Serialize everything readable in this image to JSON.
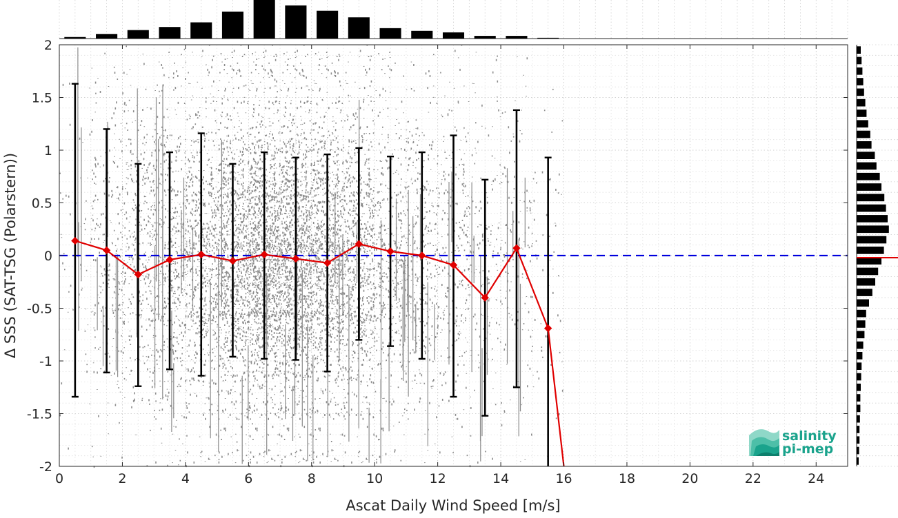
{
  "chart_data": {
    "type": "scatter",
    "xlabel": "Ascat Daily Wind Speed [m/s]",
    "ylabel": "Δ SSS (SAT-TSG (Polarstern))",
    "xlim": [
      0,
      25
    ],
    "ylim": [
      -2,
      2
    ],
    "xticks": [
      0,
      2,
      4,
      6,
      8,
      10,
      12,
      14,
      16,
      18,
      20,
      22,
      24
    ],
    "yticks": [
      -2,
      -1.5,
      -1,
      -0.5,
      0,
      0.5,
      1,
      1.5,
      2
    ],
    "grid": true,
    "reference_line": {
      "y": 0,
      "color": "#0000dd",
      "style": "dashed"
    },
    "binned_mean": {
      "color": "#e00000",
      "x": [
        0.5,
        1.5,
        2.5,
        3.5,
        4.5,
        5.5,
        6.5,
        7.5,
        8.5,
        9.5,
        10.5,
        11.5,
        12.5,
        13.5,
        14.5,
        15.5,
        16.0
      ],
      "mean": [
        0.14,
        0.05,
        -0.18,
        -0.04,
        0.01,
        -0.05,
        0.01,
        -0.03,
        -0.07,
        0.11,
        0.04,
        0.0,
        -0.09,
        -0.4,
        0.07,
        -0.69,
        -2.0
      ],
      "err_low": [
        -1.34,
        -1.11,
        -1.24,
        -1.08,
        -1.14,
        -0.96,
        -0.98,
        -0.99,
        -1.1,
        -0.8,
        -0.86,
        -0.98,
        -1.34,
        -1.52,
        -1.25,
        -2.0,
        null
      ],
      "err_high": [
        1.63,
        1.2,
        0.87,
        0.98,
        1.16,
        0.87,
        0.98,
        0.93,
        0.96,
        1.02,
        0.94,
        0.98,
        1.14,
        0.72,
        1.38,
        0.93,
        null
      ]
    },
    "scatter_density": {
      "color": "#808080",
      "center_x": [
        0.5,
        1.5,
        2.5,
        3.5,
        4.5,
        5.5,
        6.5,
        7.5,
        8.5,
        9.5,
        10.5,
        11.5,
        12.5,
        13.5,
        14.5,
        15.5
      ],
      "relative_counts": [
        0.02,
        0.09,
        0.14,
        0.19,
        0.26,
        0.39,
        0.55,
        0.5,
        0.4,
        0.3,
        0.16,
        0.12,
        0.1,
        0.06,
        0.05,
        0.02
      ]
    },
    "top_histogram": {
      "bin_centers": [
        0.5,
        1.5,
        2.5,
        3.5,
        4.5,
        5.5,
        6.5,
        7.5,
        8.5,
        9.5,
        10.5,
        11.5,
        12.5,
        13.5,
        14.5,
        15.5
      ],
      "relative_heights": [
        0.04,
        0.12,
        0.22,
        0.3,
        0.42,
        0.7,
        1.0,
        0.86,
        0.72,
        0.55,
        0.27,
        0.2,
        0.16,
        0.07,
        0.07,
        0.02
      ]
    },
    "right_histogram": {
      "bin_width": 0.1,
      "relative_lengths": [
        0.1,
        0.12,
        0.14,
        0.16,
        0.18,
        0.21,
        0.24,
        0.28,
        0.33,
        0.36,
        0.44,
        0.48,
        0.56,
        0.6,
        0.67,
        0.71,
        0.75,
        0.78,
        0.72,
        0.66,
        0.6,
        0.52,
        0.45,
        0.38,
        0.3,
        0.23,
        0.21,
        0.19,
        0.16,
        0.14,
        0.12,
        0.11,
        0.1,
        0.09,
        0.09,
        0.08,
        0.07,
        0.07,
        0.06,
        0.05
      ],
      "mean_line_color": "#e00000"
    }
  },
  "logo": {
    "line1": "salinity",
    "line2": "pi-mep",
    "color": "#1aa38c"
  }
}
